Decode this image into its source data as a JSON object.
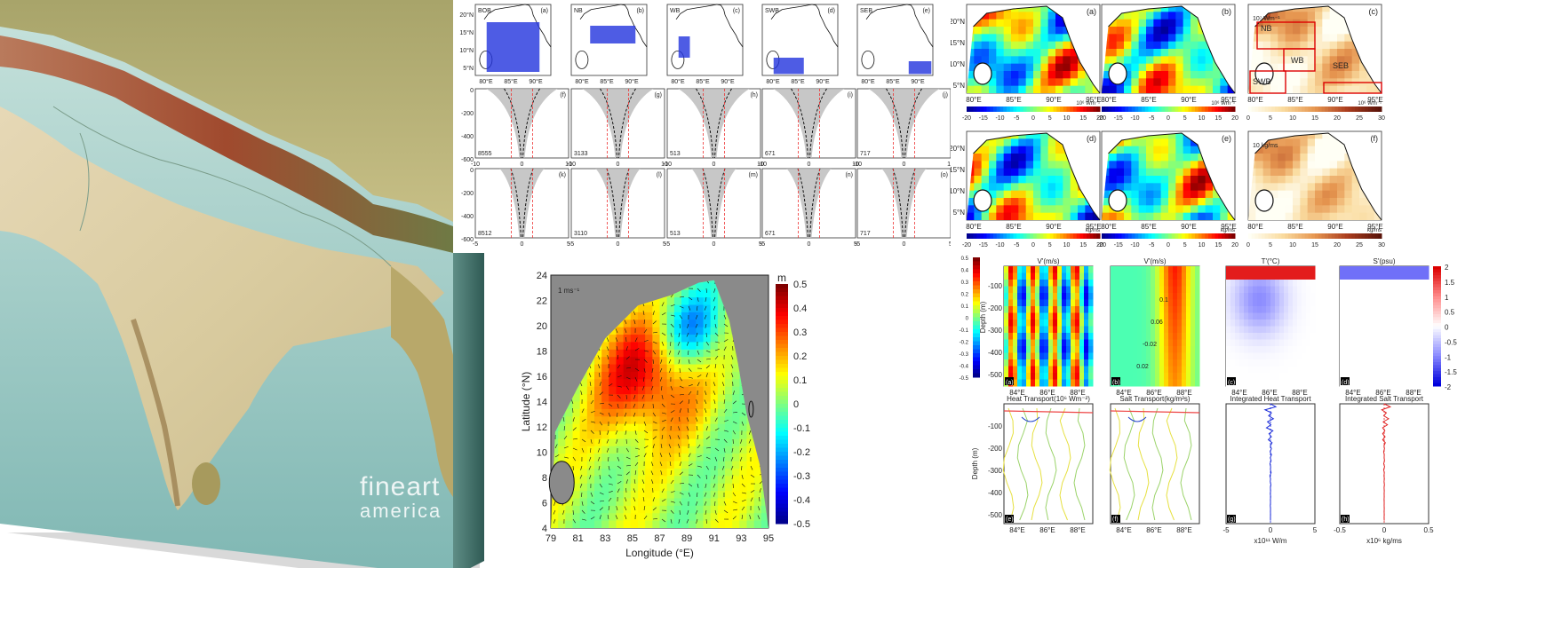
{
  "watermark": {
    "line1": "fineart",
    "line2": "america"
  },
  "top_grid": {
    "row1": [
      {
        "label": "BOB",
        "tag": "(a)"
      },
      {
        "label": "NB",
        "tag": "(b)"
      },
      {
        "label": "WB",
        "tag": "(c)"
      },
      {
        "label": "SWB",
        "tag": "(d)"
      },
      {
        "label": "SEB",
        "tag": "(e)"
      }
    ],
    "row1_lat": [
      "20°N",
      "15°N",
      "10°N",
      "5°N"
    ],
    "row1_lon": [
      "80°E",
      "85°E",
      "90°E"
    ],
    "row2_tags": [
      "(f)",
      "(g)",
      "(h)",
      "(i)",
      "(j)"
    ],
    "row2_counts": [
      "8555",
      "3133",
      "513",
      "671",
      "717"
    ],
    "row3_tags": [
      "(k)",
      "(l)",
      "(m)",
      "(n)",
      "(o)"
    ],
    "row3_counts": [
      "8512",
      "3110",
      "513",
      "671",
      "717"
    ],
    "depth_ticks": [
      "0",
      "-200",
      "-400",
      "-600"
    ],
    "x_ticks": [
      "-5",
      "0",
      "5"
    ],
    "x_ticks_row2": [
      "-10",
      "0",
      "10"
    ]
  },
  "right_maps": {
    "top_tags": [
      "(a)",
      "(b)",
      "(c)"
    ],
    "bottom_tags": [
      "(d)",
      "(e)",
      "(f)"
    ],
    "lat": [
      "20°N",
      "15°N",
      "10°N",
      "5°N"
    ],
    "lon": [
      "80°E",
      "85°E",
      "90°E",
      "95°E"
    ],
    "cbar_ticks_a": [
      "-20",
      "-15",
      "-10",
      "-5",
      "0",
      "5",
      "10",
      "15",
      "20"
    ],
    "cbar_ticks_c": [
      "0",
      "5",
      "10",
      "15",
      "20",
      "25",
      "30"
    ],
    "unit_a": "10⁶ Wm⁻¹",
    "unit_c": "10⁶ Wm⁻¹",
    "unit_d": "kg/ms",
    "unit_f": "kg/ms",
    "scale_c": "10⁷ Wm⁻¹",
    "scale_f": "10 kg/ms",
    "regions": [
      "NB",
      "WB",
      "SEB",
      "SWB"
    ]
  },
  "main_map": {
    "ylabel": "Latitude (°N)",
    "xlabel": "Longitude (°E)",
    "yticks": [
      "24",
      "22",
      "20",
      "18",
      "16",
      "14",
      "12",
      "10",
      "8",
      "6",
      "4"
    ],
    "xticks": [
      "79",
      "81",
      "83",
      "85",
      "87",
      "89",
      "91",
      "93",
      "95"
    ],
    "unit": "m",
    "scale": "1 ms⁻¹",
    "cbar_ticks": [
      "0.5",
      "0.4",
      "0.3",
      "0.2",
      "0.1",
      "0",
      "-0.1",
      "-0.2",
      "-0.3",
      "-0.4",
      "-0.5"
    ]
  },
  "section": {
    "top_titles": [
      "V'(m/s)",
      "V'(m/s)",
      "T'(°C)",
      "S'(psu)"
    ],
    "top_tags": [
      "(a)",
      "(b)",
      "(c)",
      "(d)"
    ],
    "small_cbar": [
      "0.5",
      "0.4",
      "0.3",
      "0.2",
      "0.1",
      "0",
      "-0.1",
      "-0.2",
      "-0.3",
      "-0.4",
      "-0.5"
    ],
    "small_cbar_label": "Depth (m)",
    "right_cbar": [
      "2",
      "1.5",
      "1",
      "0.5",
      "0",
      "-0.5",
      "-1",
      "-1.5",
      "-2"
    ],
    "depth_ticks": [
      "-100",
      "-200",
      "-300",
      "-400",
      "-500"
    ],
    "lon_ticks": [
      "84°E",
      "86°E",
      "88°E"
    ],
    "contours_b": [
      "0.1",
      "0.06",
      "-0.02",
      "0.02"
    ],
    "bottom_titles": [
      "Heat Transport(10⁶ Wm⁻²)",
      "Salt Transport(kg/m²s)",
      "Integrated Heat Transport",
      "Integrated Salt Transport"
    ],
    "bottom_tags": [
      "(e)",
      "(f)",
      "(g)",
      "(h)"
    ],
    "depth_label": "Depth (m)",
    "g_x": [
      "-5",
      "0",
      "5"
    ],
    "g_unit": "x10¹¹ W/m",
    "h_x": [
      "-0.5",
      "0",
      "0.5"
    ],
    "h_unit": "x10⁶ kg/ms"
  }
}
